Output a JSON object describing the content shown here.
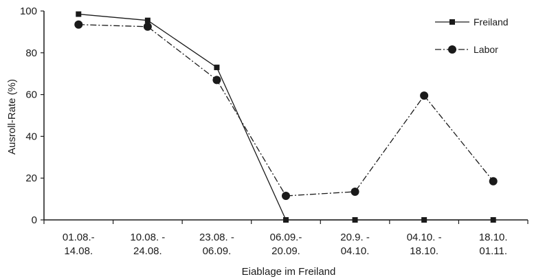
{
  "chart_data": {
    "type": "line",
    "title": "",
    "xlabel": "Eiablage im Freiland",
    "ylabel": "Ausroll-Rate (%)",
    "ylim": [
      0,
      100
    ],
    "yticks": [
      0,
      20,
      40,
      60,
      80,
      100
    ],
    "grid": false,
    "legend_position": "top-right",
    "categories": [
      [
        "01.08.-",
        "14.08."
      ],
      [
        "10.08. -",
        "24.08."
      ],
      [
        "23.08. -",
        "06.09."
      ],
      [
        "06.09.-",
        "20.09."
      ],
      [
        "20.9. -",
        "04.10."
      ],
      [
        "04.10. -",
        "18.10."
      ],
      [
        "18.10.",
        "01.11."
      ]
    ],
    "series": [
      {
        "name": "Freiland",
        "marker": "square",
        "line": "solid",
        "color": "#1a1a1a",
        "values": [
          98.5,
          95.5,
          73,
          0,
          0,
          0,
          0
        ]
      },
      {
        "name": "Labor",
        "marker": "circle",
        "line": "dash-dot",
        "color": "#1a1a1a",
        "values": [
          93.5,
          92.5,
          67,
          11.5,
          13.5,
          59.5,
          18.5
        ]
      }
    ]
  }
}
